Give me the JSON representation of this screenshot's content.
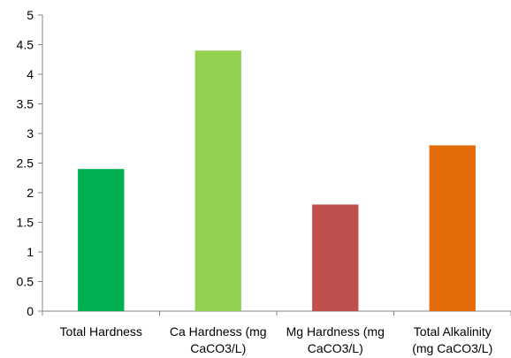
{
  "chart_data": {
    "type": "bar",
    "categories": [
      [
        "Total Hardness"
      ],
      [
        "Ca Hardness (mg",
        "CaCO3/L)"
      ],
      [
        "Mg Hardness (mg",
        "CaCO3/L)"
      ],
      [
        "Total Alkalinity",
        "(mg CaCO3/L)"
      ]
    ],
    "values": [
      2.4,
      4.4,
      1.8,
      2.8
    ],
    "colors": [
      "#00b050",
      "#92d050",
      "#c0504d",
      "#e36c09"
    ],
    "ylim": [
      0,
      5
    ],
    "yticks": [
      "0",
      "0.5",
      "1",
      "1.5",
      "2",
      "2.5",
      "3",
      "3.5",
      "4",
      "4.5",
      "5"
    ],
    "grid": false,
    "legend": "none",
    "title": "",
    "xlabel": "",
    "ylabel": ""
  }
}
